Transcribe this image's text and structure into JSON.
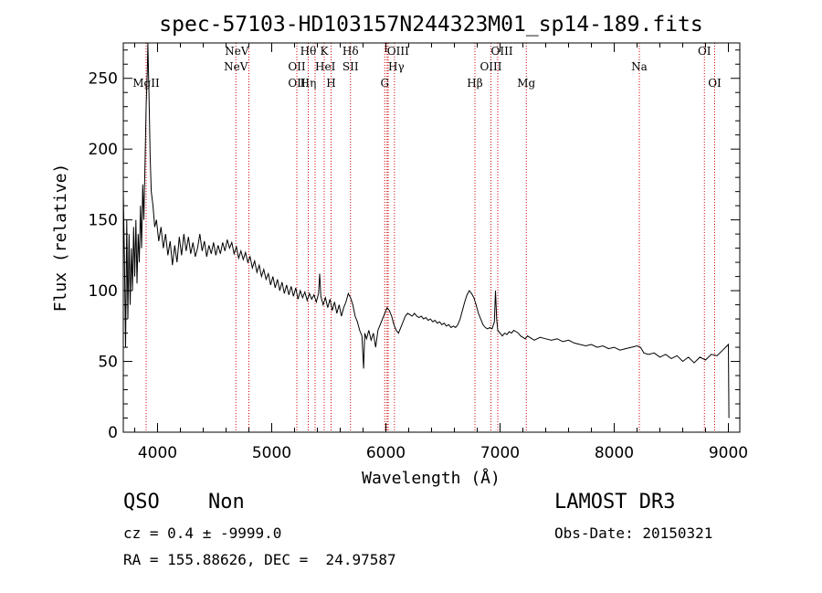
{
  "chart_data": {
    "type": "line",
    "title": "spec-57103-HD103157N244323M01_sp14-189.fits",
    "xlabel": "Wavelength (Å)",
    "ylabel": "Flux (relative)",
    "xlim": [
      3700,
      9100
    ],
    "ylim": [
      0,
      275
    ],
    "xticks": [
      "4000",
      "5000",
      "6000",
      "7000",
      "8000",
      "9000"
    ],
    "yticks": [
      "0",
      "50",
      "100",
      "150",
      "200",
      "250"
    ],
    "grid": false,
    "series": [
      {
        "points": [
          [
            3700,
            170
          ],
          [
            3710,
            120
          ],
          [
            3720,
            60
          ],
          [
            3730,
            150
          ],
          [
            3740,
            80
          ],
          [
            3750,
            140
          ],
          [
            3760,
            90
          ],
          [
            3770,
            130
          ],
          [
            3780,
            100
          ],
          [
            3790,
            145
          ],
          [
            3800,
            110
          ],
          [
            3810,
            150
          ],
          [
            3820,
            105
          ],
          [
            3830,
            140
          ],
          [
            3840,
            120
          ],
          [
            3850,
            160
          ],
          [
            3860,
            130
          ],
          [
            3870,
            175
          ],
          [
            3880,
            150
          ],
          [
            3890,
            190
          ],
          [
            3900,
            230
          ],
          [
            3910,
            255
          ],
          [
            3915,
            275
          ],
          [
            3925,
            240
          ],
          [
            3935,
            195
          ],
          [
            3945,
            170
          ],
          [
            3960,
            160
          ],
          [
            3975,
            145
          ],
          [
            3990,
            150
          ],
          [
            4010,
            135
          ],
          [
            4030,
            145
          ],
          [
            4050,
            130
          ],
          [
            4070,
            140
          ],
          [
            4090,
            125
          ],
          [
            4110,
            135
          ],
          [
            4130,
            118
          ],
          [
            4150,
            132
          ],
          [
            4170,
            120
          ],
          [
            4190,
            138
          ],
          [
            4210,
            125
          ],
          [
            4230,
            140
          ],
          [
            4250,
            128
          ],
          [
            4270,
            138
          ],
          [
            4290,
            126
          ],
          [
            4310,
            134
          ],
          [
            4330,
            124
          ],
          [
            4350,
            130
          ],
          [
            4370,
            140
          ],
          [
            4390,
            128
          ],
          [
            4410,
            135
          ],
          [
            4430,
            124
          ],
          [
            4450,
            132
          ],
          [
            4470,
            126
          ],
          [
            4490,
            134
          ],
          [
            4510,
            125
          ],
          [
            4530,
            132
          ],
          [
            4550,
            126
          ],
          [
            4570,
            134
          ],
          [
            4590,
            128
          ],
          [
            4610,
            136
          ],
          [
            4630,
            130
          ],
          [
            4650,
            134
          ],
          [
            4670,
            126
          ],
          [
            4690,
            131
          ],
          [
            4710,
            123
          ],
          [
            4730,
            128
          ],
          [
            4750,
            122
          ],
          [
            4770,
            127
          ],
          [
            4790,
            120
          ],
          [
            4810,
            124
          ],
          [
            4830,
            116
          ],
          [
            4850,
            121
          ],
          [
            4870,
            113
          ],
          [
            4890,
            118
          ],
          [
            4910,
            110
          ],
          [
            4930,
            115
          ],
          [
            4950,
            108
          ],
          [
            4970,
            112
          ],
          [
            4990,
            104
          ],
          [
            5010,
            110
          ],
          [
            5030,
            102
          ],
          [
            5050,
            108
          ],
          [
            5070,
            100
          ],
          [
            5090,
            106
          ],
          [
            5110,
            98
          ],
          [
            5130,
            104
          ],
          [
            5150,
            97
          ],
          [
            5170,
            103
          ],
          [
            5190,
            96
          ],
          [
            5210,
            102
          ],
          [
            5230,
            94
          ],
          [
            5250,
            100
          ],
          [
            5270,
            95
          ],
          [
            5290,
            99
          ],
          [
            5310,
            93
          ],
          [
            5330,
            98
          ],
          [
            5350,
            94
          ],
          [
            5370,
            97
          ],
          [
            5390,
            92
          ],
          [
            5410,
            98
          ],
          [
            5420,
            112
          ],
          [
            5430,
            96
          ],
          [
            5450,
            90
          ],
          [
            5470,
            95
          ],
          [
            5490,
            88
          ],
          [
            5510,
            94
          ],
          [
            5530,
            86
          ],
          [
            5550,
            92
          ],
          [
            5570,
            84
          ],
          [
            5590,
            90
          ],
          [
            5610,
            82
          ],
          [
            5630,
            88
          ],
          [
            5650,
            92
          ],
          [
            5670,
            98
          ],
          [
            5690,
            95
          ],
          [
            5710,
            90
          ],
          [
            5730,
            82
          ],
          [
            5750,
            78
          ],
          [
            5770,
            72
          ],
          [
            5790,
            68
          ],
          [
            5805,
            45
          ],
          [
            5815,
            70
          ],
          [
            5830,
            66
          ],
          [
            5850,
            72
          ],
          [
            5870,
            65
          ],
          [
            5890,
            70
          ],
          [
            5910,
            60
          ],
          [
            5930,
            72
          ],
          [
            5950,
            76
          ],
          [
            5970,
            80
          ],
          [
            5990,
            84
          ],
          [
            6010,
            88
          ],
          [
            6030,
            86
          ],
          [
            6050,
            82
          ],
          [
            6070,
            76
          ],
          [
            6090,
            72
          ],
          [
            6110,
            70
          ],
          [
            6130,
            74
          ],
          [
            6150,
            78
          ],
          [
            6170,
            82
          ],
          [
            6190,
            84
          ],
          [
            6210,
            83
          ],
          [
            6230,
            82
          ],
          [
            6250,
            84
          ],
          [
            6270,
            82
          ],
          [
            6290,
            81
          ],
          [
            6310,
            82
          ],
          [
            6330,
            80
          ],
          [
            6350,
            81
          ],
          [
            6370,
            79
          ],
          [
            6390,
            80
          ],
          [
            6410,
            78
          ],
          [
            6430,
            79
          ],
          [
            6450,
            77
          ],
          [
            6470,
            78
          ],
          [
            6490,
            76
          ],
          [
            6510,
            77
          ],
          [
            6530,
            75
          ],
          [
            6550,
            76
          ],
          [
            6570,
            74
          ],
          [
            6590,
            75
          ],
          [
            6610,
            74
          ],
          [
            6630,
            76
          ],
          [
            6650,
            80
          ],
          [
            6670,
            86
          ],
          [
            6690,
            92
          ],
          [
            6710,
            97
          ],
          [
            6730,
            100
          ],
          [
            6750,
            98
          ],
          [
            6770,
            95
          ],
          [
            6790,
            90
          ],
          [
            6810,
            84
          ],
          [
            6830,
            80
          ],
          [
            6850,
            76
          ],
          [
            6870,
            74
          ],
          [
            6890,
            73
          ],
          [
            6910,
            74
          ],
          [
            6930,
            73
          ],
          [
            6950,
            78
          ],
          [
            6960,
            100
          ],
          [
            6970,
            80
          ],
          [
            6980,
            72
          ],
          [
            7000,
            70
          ],
          [
            7020,
            68
          ],
          [
            7040,
            70
          ],
          [
            7060,
            69
          ],
          [
            7080,
            71
          ],
          [
            7100,
            70
          ],
          [
            7120,
            72
          ],
          [
            7140,
            71
          ],
          [
            7160,
            70
          ],
          [
            7180,
            68
          ],
          [
            7200,
            67
          ],
          [
            7220,
            66
          ],
          [
            7240,
            68
          ],
          [
            7260,
            67
          ],
          [
            7280,
            66
          ],
          [
            7300,
            65
          ],
          [
            7350,
            67
          ],
          [
            7400,
            66
          ],
          [
            7450,
            65
          ],
          [
            7500,
            66
          ],
          [
            7550,
            64
          ],
          [
            7600,
            65
          ],
          [
            7650,
            63
          ],
          [
            7700,
            62
          ],
          [
            7750,
            61
          ],
          [
            7800,
            62
          ],
          [
            7850,
            60
          ],
          [
            7900,
            61
          ],
          [
            7950,
            59
          ],
          [
            8000,
            60
          ],
          [
            8050,
            58
          ],
          [
            8100,
            59
          ],
          [
            8150,
            60
          ],
          [
            8200,
            61
          ],
          [
            8230,
            60
          ],
          [
            8260,
            56
          ],
          [
            8300,
            55
          ],
          [
            8350,
            56
          ],
          [
            8400,
            53
          ],
          [
            8450,
            55
          ],
          [
            8500,
            52
          ],
          [
            8550,
            54
          ],
          [
            8600,
            50
          ],
          [
            8650,
            53
          ],
          [
            8700,
            49
          ],
          [
            8750,
            53
          ],
          [
            8800,
            51
          ],
          [
            8850,
            55
          ],
          [
            8900,
            54
          ],
          [
            8950,
            58
          ],
          [
            9000,
            62
          ],
          [
            9005,
            10
          ]
        ]
      }
    ],
    "lines": [
      {
        "wl": 3900,
        "label": "MgII",
        "row": 3,
        "anchor": "middle"
      },
      {
        "wl": 4686,
        "label": "NeV",
        "row": 2,
        "anchor": "middle"
      },
      {
        "wl": 4800,
        "label": "NeV",
        "row": 1,
        "anchor": "end"
      },
      {
        "wl": 5220,
        "label": "OII",
        "row": 2,
        "anchor": "middle"
      },
      {
        "wl": 5220,
        "label": "OII",
        "row": 3,
        "anchor": "middle"
      },
      {
        "wl": 5320,
        "label": "Hθ",
        "row": 1,
        "anchor": "middle"
      },
      {
        "wl": 5320,
        "label": "Hη",
        "row": 3,
        "anchor": "middle"
      },
      {
        "wl": 5380,
        "label": "HeI",
        "row": 2,
        "anchor": "start"
      },
      {
        "wl": 5460,
        "label": "K",
        "row": 1,
        "anchor": "middle"
      },
      {
        "wl": 5520,
        "label": "H",
        "row": 3,
        "anchor": "middle"
      },
      {
        "wl": 5690,
        "label": "Hδ",
        "row": 1,
        "anchor": "middle"
      },
      {
        "wl": 5690,
        "label": "SII",
        "row": 2,
        "anchor": "middle"
      },
      {
        "wl": 6010,
        "label": "OIII",
        "row": 1,
        "anchor": "start"
      },
      {
        "wl": 6020,
        "label": "Hγ",
        "row": 2,
        "anchor": "start"
      },
      {
        "wl": 5990,
        "label": "G",
        "row": 3,
        "anchor": "middle"
      },
      {
        "wl": 6075,
        "label": null
      },
      {
        "wl": 6780,
        "label": "Hβ",
        "row": 3,
        "anchor": "middle"
      },
      {
        "wl": 6920,
        "label": "OIII",
        "row": 1,
        "anchor": "start"
      },
      {
        "wl": 6920,
        "label": "OIII",
        "row": 2,
        "anchor": "middle"
      },
      {
        "wl": 6980,
        "label": null
      },
      {
        "wl": 7230,
        "label": "Mg",
        "row": 3,
        "anchor": "middle"
      },
      {
        "wl": 8220,
        "label": "Na",
        "row": 2,
        "anchor": "middle"
      },
      {
        "wl": 8790,
        "label": "OI",
        "row": 1,
        "anchor": "middle"
      },
      {
        "wl": 8880,
        "label": "OI",
        "row": 3,
        "anchor": "middle"
      }
    ],
    "colors": {
      "spectrum": "#000000",
      "line_marker": "#cc0000",
      "axes": "#000000"
    }
  },
  "info": {
    "class": "QSO",
    "subclass": "Non",
    "survey": "LAMOST DR3",
    "cz": "cz = 0.4 ± -9999.0",
    "obsdate": "Obs-Date: 20150321",
    "radec": "RA = 155.88626, DEC =  24.97587"
  }
}
